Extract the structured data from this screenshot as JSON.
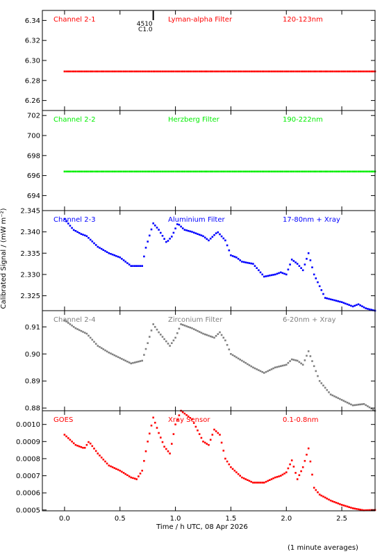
{
  "chart_data": {
    "type": "scatter",
    "xlabel": "Time / h UTC, 08 Apr 2026",
    "ylabel": "Calibrated Signal / (mW m⁻²)",
    "footnote": "(1 minute averages)",
    "xlim": [
      -0.2,
      2.8
    ],
    "xticks": [
      0.0,
      0.5,
      1.0,
      1.5,
      2.0,
      2.5
    ],
    "xtick_labels": [
      "0.0",
      "0.5",
      "1.0",
      "1.5",
      "2.0",
      "2.5"
    ],
    "flare_marker": {
      "x": 0.8,
      "labels": [
        "4510",
        "C1.0"
      ]
    },
    "panels": [
      {
        "channel": "Channel 2-1",
        "filter": "Lyman-alpha Filter",
        "band": "120-123nm",
        "color": "#ff0000",
        "ylim": [
          6.25,
          6.35
        ],
        "yticks": [
          6.26,
          6.28,
          6.3,
          6.32,
          6.34
        ],
        "ytick_labels": [
          "6.26",
          "6.28",
          "6.30",
          "6.32",
          "6.34"
        ],
        "key": [
          [
            0.0,
            6.289
          ],
          [
            2.8,
            6.289
          ]
        ]
      },
      {
        "channel": "Channel 2-2",
        "filter": "Herzberg Filter",
        "band": "190-222nm",
        "color": "#00ee00",
        "ylim": [
          692.5,
          702.5
        ],
        "yticks": [
          694,
          696,
          698,
          700,
          702
        ],
        "ytick_labels": [
          "694",
          "696",
          "698",
          "700",
          "702"
        ],
        "key": [
          [
            0.0,
            696.4
          ],
          [
            2.8,
            696.4
          ]
        ]
      },
      {
        "channel": "Channel 2-3",
        "filter": "Aluminium Filter",
        "band": "17-80nm + Xray",
        "color": "#0000ff",
        "ylim": [
          2.3215,
          2.345
        ],
        "yticks": [
          2.325,
          2.33,
          2.335,
          2.34,
          2.345
        ],
        "ytick_labels": [
          "2.325",
          "2.330",
          "2.335",
          "2.340",
          "2.345"
        ],
        "key": [
          [
            0.0,
            2.343
          ],
          [
            0.08,
            2.3405
          ],
          [
            0.15,
            2.3395
          ],
          [
            0.2,
            2.339
          ],
          [
            0.3,
            2.3365
          ],
          [
            0.4,
            2.335
          ],
          [
            0.5,
            2.334
          ],
          [
            0.6,
            2.332
          ],
          [
            0.7,
            2.332
          ],
          [
            0.73,
            2.336
          ],
          [
            0.8,
            2.342
          ],
          [
            0.85,
            2.3405
          ],
          [
            0.92,
            2.3375
          ],
          [
            0.97,
            2.339
          ],
          [
            1.02,
            2.342
          ],
          [
            1.08,
            2.3405
          ],
          [
            1.15,
            2.34
          ],
          [
            1.25,
            2.339
          ],
          [
            1.3,
            2.338
          ],
          [
            1.38,
            2.34
          ],
          [
            1.45,
            2.338
          ],
          [
            1.5,
            2.3345
          ],
          [
            1.55,
            2.334
          ],
          [
            1.6,
            2.333
          ],
          [
            1.7,
            2.3325
          ],
          [
            1.8,
            2.3295
          ],
          [
            1.9,
            2.33
          ],
          [
            1.95,
            2.3305
          ],
          [
            2.0,
            2.33
          ],
          [
            2.05,
            2.3335
          ],
          [
            2.1,
            2.3325
          ],
          [
            2.15,
            2.331
          ],
          [
            2.2,
            2.335
          ],
          [
            2.25,
            2.33
          ],
          [
            2.35,
            2.3245
          ],
          [
            2.5,
            2.3235
          ],
          [
            2.6,
            2.3225
          ],
          [
            2.65,
            2.323
          ],
          [
            2.72,
            2.322
          ],
          [
            2.8,
            2.3215
          ]
        ]
      },
      {
        "channel": "Channel 2-4",
        "filter": "Zirconium Filter",
        "band": "6-20nm + Xray",
        "color": "#808080",
        "ylim": [
          0.879,
          0.916
        ],
        "yticks": [
          0.88,
          0.89,
          0.9,
          0.91
        ],
        "ytick_labels": [
          "0.88",
          "0.89",
          "0.90",
          "0.91"
        ],
        "key": [
          [
            0.0,
            0.9125
          ],
          [
            0.1,
            0.9095
          ],
          [
            0.2,
            0.9075
          ],
          [
            0.3,
            0.903
          ],
          [
            0.4,
            0.9005
          ],
          [
            0.5,
            0.8985
          ],
          [
            0.6,
            0.8965
          ],
          [
            0.7,
            0.8975
          ],
          [
            0.75,
            0.904
          ],
          [
            0.8,
            0.911
          ],
          [
            0.85,
            0.908
          ],
          [
            0.95,
            0.903
          ],
          [
            1.0,
            0.906
          ],
          [
            1.05,
            0.911
          ],
          [
            1.15,
            0.9095
          ],
          [
            1.25,
            0.9075
          ],
          [
            1.35,
            0.906
          ],
          [
            1.4,
            0.908
          ],
          [
            1.45,
            0.905
          ],
          [
            1.5,
            0.9
          ],
          [
            1.6,
            0.8975
          ],
          [
            1.7,
            0.895
          ],
          [
            1.8,
            0.893
          ],
          [
            1.9,
            0.895
          ],
          [
            2.0,
            0.896
          ],
          [
            2.05,
            0.898
          ],
          [
            2.1,
            0.8975
          ],
          [
            2.15,
            0.896
          ],
          [
            2.2,
            0.901
          ],
          [
            2.3,
            0.89
          ],
          [
            2.4,
            0.885
          ],
          [
            2.5,
            0.883
          ],
          [
            2.6,
            0.881
          ],
          [
            2.7,
            0.8815
          ],
          [
            2.8,
            0.879
          ]
        ]
      },
      {
        "channel": "GOES",
        "filter": "Xray Sensor",
        "band": "0.1-0.8nm",
        "color": "#ff0000",
        "ylim": [
          0.000495,
          0.00108
        ],
        "yticks": [
          0.0005,
          0.0006,
          0.0007,
          0.0008,
          0.0009,
          0.001
        ],
        "ytick_labels": [
          "0.0005",
          "0.0006",
          "0.0007",
          "0.0008",
          "0.0009",
          "0.0010"
        ],
        "key": [
          [
            0.0,
            0.00094
          ],
          [
            0.1,
            0.00088
          ],
          [
            0.18,
            0.00086
          ],
          [
            0.22,
            0.0009
          ],
          [
            0.3,
            0.00083
          ],
          [
            0.4,
            0.00076
          ],
          [
            0.5,
            0.00073
          ],
          [
            0.6,
            0.00069
          ],
          [
            0.65,
            0.00068
          ],
          [
            0.7,
            0.00073
          ],
          [
            0.75,
            0.0009
          ],
          [
            0.8,
            0.00104
          ],
          [
            0.85,
            0.00095
          ],
          [
            0.9,
            0.00087
          ],
          [
            0.95,
            0.00083
          ],
          [
            1.0,
            0.001
          ],
          [
            1.05,
            0.00108
          ],
          [
            1.15,
            0.00103
          ],
          [
            1.25,
            0.0009
          ],
          [
            1.3,
            0.00088
          ],
          [
            1.35,
            0.00097
          ],
          [
            1.4,
            0.00094
          ],
          [
            1.45,
            0.0008
          ],
          [
            1.5,
            0.00075
          ],
          [
            1.6,
            0.00069
          ],
          [
            1.7,
            0.00066
          ],
          [
            1.8,
            0.00066
          ],
          [
            1.9,
            0.00069
          ],
          [
            1.95,
            0.0007
          ],
          [
            2.0,
            0.00072
          ],
          [
            2.05,
            0.00079
          ],
          [
            2.1,
            0.00068
          ],
          [
            2.15,
            0.00075
          ],
          [
            2.2,
            0.00086
          ],
          [
            2.25,
            0.00063
          ],
          [
            2.3,
            0.00059
          ],
          [
            2.4,
            0.000555
          ],
          [
            2.5,
            0.00053
          ],
          [
            2.6,
            0.00051
          ],
          [
            2.7,
            0.000498
          ],
          [
            2.8,
            0.0005
          ]
        ]
      }
    ]
  }
}
